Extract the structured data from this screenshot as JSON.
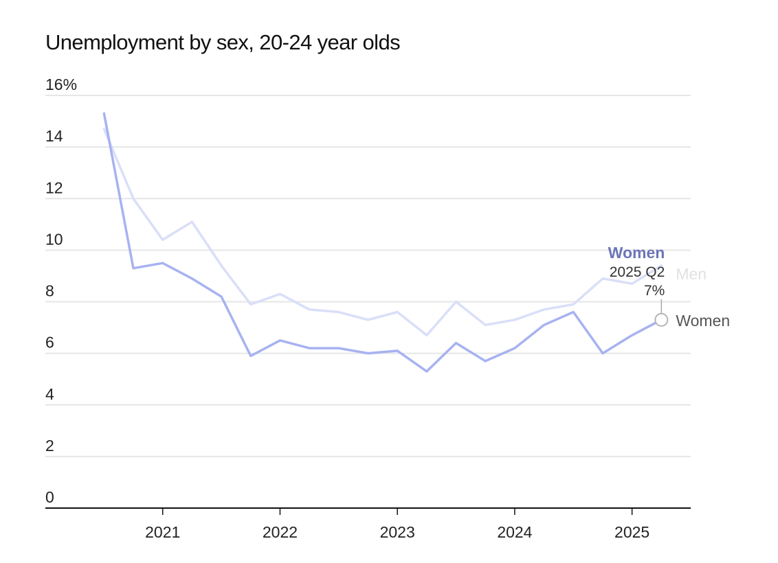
{
  "chart_data": {
    "type": "line",
    "title": "Unemployment by sex, 20-24 year olds",
    "xlabel": "",
    "ylabel": "",
    "y_unit": "%",
    "ylim": [
      0,
      16
    ],
    "xlim": [
      "2020 Q1",
      "2025 Q3"
    ],
    "y_ticks": [
      {
        "value": 16,
        "label": "16%"
      },
      {
        "value": 14,
        "label": "14"
      },
      {
        "value": 12,
        "label": "12"
      },
      {
        "value": 10,
        "label": "10"
      },
      {
        "value": 8,
        "label": "8"
      },
      {
        "value": 6,
        "label": "6"
      },
      {
        "value": 4,
        "label": "4"
      },
      {
        "value": 2,
        "label": "2"
      },
      {
        "value": 0,
        "label": "0"
      }
    ],
    "x_ticks": [
      "2021",
      "2022",
      "2023",
      "2024",
      "2025"
    ],
    "x": [
      "2020 Q3",
      "2020 Q4",
      "2021 Q1",
      "2021 Q2",
      "2021 Q3",
      "2021 Q4",
      "2022 Q1",
      "2022 Q2",
      "2022 Q3",
      "2022 Q4",
      "2023 Q1",
      "2023 Q2",
      "2023 Q3",
      "2023 Q4",
      "2024 Q1",
      "2024 Q2",
      "2024 Q3",
      "2024 Q4",
      "2025 Q1",
      "2025 Q2"
    ],
    "series": [
      {
        "name": "Men",
        "color": "#dadff8",
        "values": [
          14.7,
          12.0,
          10.4,
          11.1,
          9.4,
          7.9,
          8.3,
          7.7,
          7.6,
          7.3,
          7.6,
          6.7,
          8.0,
          7.1,
          7.3,
          7.7,
          7.9,
          8.9,
          8.7,
          9.4
        ]
      },
      {
        "name": "Women",
        "color": "#a7b2f1",
        "values": [
          15.3,
          9.3,
          9.5,
          8.9,
          8.2,
          5.9,
          6.5,
          6.2,
          6.2,
          6.0,
          6.1,
          5.3,
          6.4,
          5.7,
          6.2,
          7.1,
          7.6,
          6.0,
          6.7,
          7.3
        ]
      }
    ],
    "grid": true,
    "legend": "direct labels at line ends",
    "end_labels": {
      "men": "Men",
      "women": "Women"
    },
    "annotation": {
      "series": "Women",
      "period": "2025 Q2",
      "value_label": "7%"
    },
    "colors": {
      "men": "#dadff8",
      "women": "#a7b2f1",
      "men_label": "#e1e1e1",
      "women_label": "#555555",
      "highlight": "#6d75b8",
      "grid": "#e6e6e6",
      "axis": "#111111"
    }
  }
}
